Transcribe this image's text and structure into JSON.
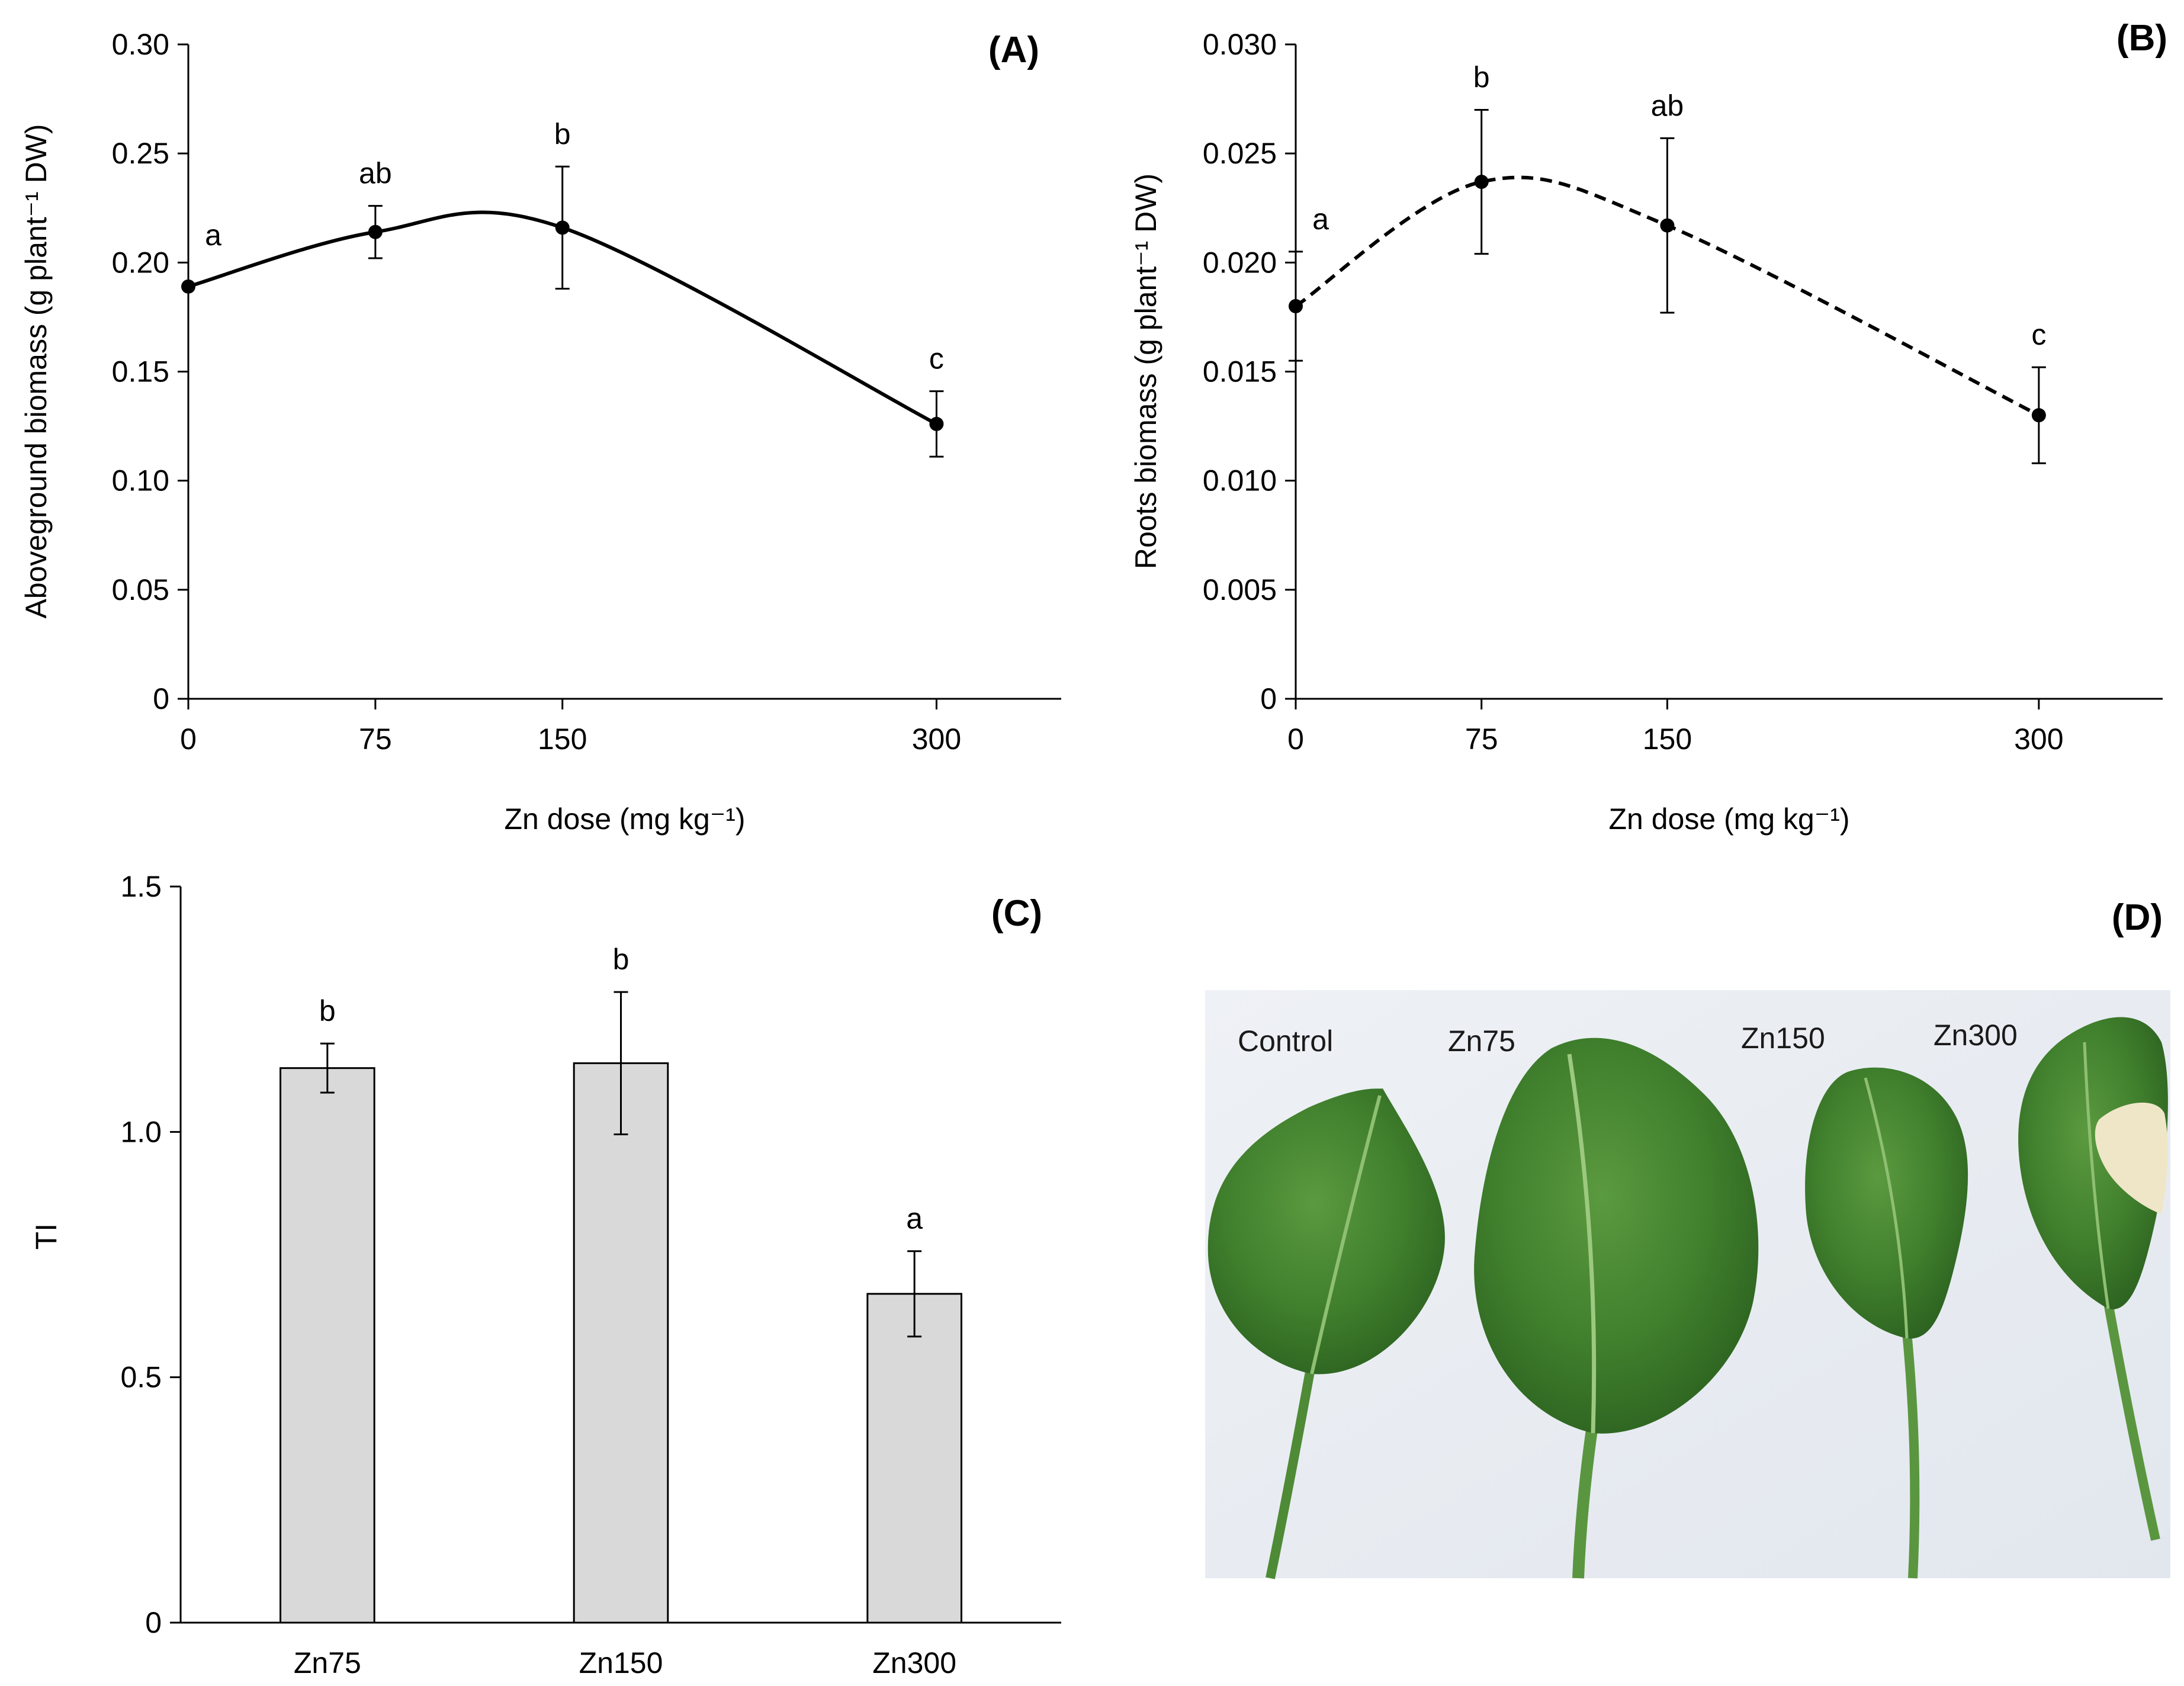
{
  "chart_data": [
    {
      "panel": "(A)",
      "type": "line",
      "x": [
        0,
        75,
        150,
        300
      ],
      "xticks": [
        "0",
        "75",
        "150",
        "300"
      ],
      "xlim": [
        0,
        350
      ],
      "values": [
        0.189,
        0.214,
        0.216,
        0.126
      ],
      "errors": [
        0.0,
        0.012,
        0.028,
        0.015
      ],
      "letters": [
        "a",
        "ab",
        "b",
        "c"
      ],
      "smooth_curve": true,
      "line_style": "solid",
      "xlabel": "Zn dose (mg kg⁻¹)",
      "ylabel": "Aboveground biomass (g plant⁻¹ DW)",
      "ylim": [
        0,
        0.3
      ],
      "yticks": [
        "0",
        "0.05",
        "0.10",
        "0.15",
        "0.20",
        "0.25",
        "0.30"
      ],
      "ytick_values": [
        0,
        0.05,
        0.1,
        0.15,
        0.2,
        0.25,
        0.3
      ]
    },
    {
      "panel": "(B)",
      "type": "line",
      "x": [
        0,
        75,
        150,
        300
      ],
      "xticks": [
        "0",
        "75",
        "150",
        "300"
      ],
      "xlim": [
        0,
        350
      ],
      "values": [
        0.018,
        0.0237,
        0.0217,
        0.013
      ],
      "errors": [
        0.0025,
        0.0033,
        0.004,
        0.0022
      ],
      "letters": [
        "a",
        "b",
        "ab",
        "c"
      ],
      "smooth_curve": true,
      "line_style": "dashed",
      "xlabel": "Zn dose (mg kg⁻¹)",
      "ylabel": "Roots biomass (g plant⁻¹ DW)",
      "ylim": [
        0,
        0.03
      ],
      "yticks": [
        "0",
        "0.005",
        "0.010",
        "0.015",
        "0.020",
        "0.025",
        "0.030"
      ],
      "ytick_values": [
        0,
        0.005,
        0.01,
        0.015,
        0.02,
        0.025,
        0.03
      ]
    },
    {
      "panel": "(C)",
      "type": "bar",
      "categories": [
        "Zn75",
        "Zn150",
        "Zn300"
      ],
      "values": [
        1.13,
        1.14,
        0.67
      ],
      "errors": [
        0.05,
        0.145,
        0.087
      ],
      "letters": [
        "b",
        "b",
        "a"
      ],
      "bar_color": "#d9d9d9",
      "xlabel": "",
      "ylabel": "TI",
      "ylim": [
        0,
        1.5
      ],
      "yticks": [
        "0",
        "0.5",
        "1.0",
        "1.5"
      ],
      "ytick_values": [
        0,
        0.5,
        1.0,
        1.5
      ]
    }
  ],
  "photo": {
    "panel": "(D)",
    "labels": [
      "Control",
      "Zn75",
      "Zn150",
      "Zn300"
    ],
    "background_color": "#e9edf2",
    "leaf_color": "#3f7e2c",
    "necrosis_color": "#efe6c8"
  }
}
